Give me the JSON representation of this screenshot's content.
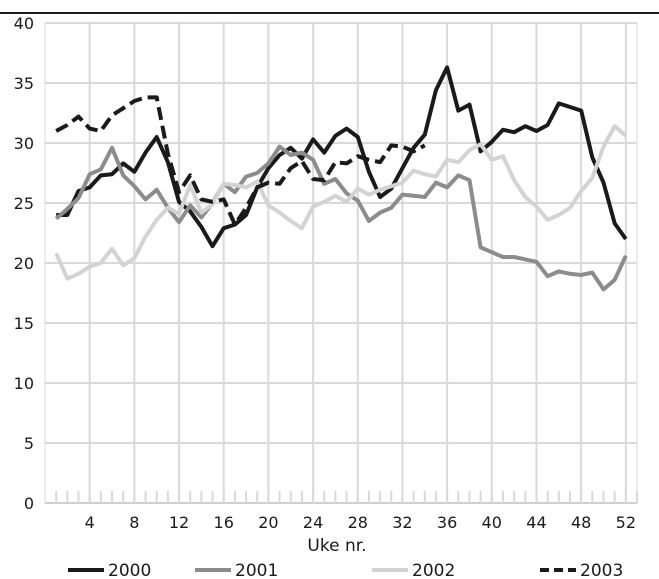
{
  "chart_data": {
    "type": "line",
    "title": "",
    "xlabel": "Uke nr.",
    "ylabel": "",
    "xlim": [
      0,
      53
    ],
    "ylim": [
      0,
      40
    ],
    "xticks": [
      4,
      8,
      12,
      16,
      20,
      24,
      28,
      32,
      36,
      40,
      44,
      48,
      52
    ],
    "yticks": [
      0,
      5,
      10,
      15,
      20,
      25,
      30,
      35,
      40
    ],
    "grid": true,
    "legend_position": "bottom",
    "series": [
      {
        "name": "2000",
        "color": "#1a1a1a",
        "dash": "solid",
        "x": [
          1,
          2,
          3,
          4,
          5,
          6,
          7,
          8,
          9,
          10,
          11,
          12,
          13,
          14,
          15,
          16,
          17,
          18,
          19,
          20,
          21,
          22,
          23,
          24,
          25,
          26,
          27,
          28,
          29,
          30,
          31,
          32,
          33,
          34,
          35,
          36,
          37,
          38,
          39,
          40,
          41,
          42,
          43,
          44,
          45,
          46,
          47,
          48,
          49,
          50,
          51,
          52
        ],
        "values": [
          24.0,
          24.0,
          26.0,
          26.3,
          27.3,
          27.4,
          28.3,
          27.6,
          29.2,
          30.5,
          28.4,
          25.1,
          24.3,
          23.0,
          21.4,
          22.9,
          23.2,
          24.0,
          26.3,
          27.9,
          29.0,
          29.6,
          28.7,
          30.3,
          29.2,
          30.6,
          31.2,
          30.5,
          27.6,
          25.5,
          26.2,
          27.9,
          29.6,
          30.7,
          34.4,
          36.3,
          32.7,
          33.2,
          29.3,
          30.1,
          31.1,
          30.9,
          31.4,
          31.0,
          31.5,
          33.3,
          33.0,
          32.7,
          28.8,
          26.7,
          23.3,
          22.0
        ]
      },
      {
        "name": "2001",
        "color": "#8c8c8c",
        "dash": "solid",
        "x": [
          1,
          2,
          3,
          4,
          5,
          6,
          7,
          8,
          9,
          10,
          11,
          12,
          13,
          14,
          15,
          16,
          17,
          18,
          19,
          20,
          21,
          22,
          23,
          24,
          25,
          26,
          27,
          28,
          29,
          30,
          31,
          32,
          33,
          34,
          35,
          36,
          37,
          38,
          39,
          40,
          41,
          42,
          43,
          44,
          45,
          46,
          47,
          48,
          49,
          50,
          51,
          52
        ],
        "values": [
          23.7,
          24.5,
          25.4,
          27.4,
          27.8,
          29.6,
          27.3,
          26.4,
          25.3,
          26.1,
          24.6,
          23.4,
          24.8,
          23.8,
          25.0,
          26.6,
          25.9,
          27.2,
          27.5,
          28.3,
          29.7,
          29.0,
          29.2,
          28.6,
          26.6,
          27.0,
          25.8,
          25.2,
          23.5,
          24.2,
          24.6,
          25.7,
          25.6,
          25.5,
          26.7,
          26.3,
          27.3,
          26.9,
          21.3,
          20.9,
          20.5,
          20.5,
          20.3,
          20.1,
          18.9,
          19.3,
          19.1,
          19.0,
          19.2,
          17.8,
          18.6,
          20.6
        ]
      },
      {
        "name": "2002",
        "color": "#d3d3d3",
        "dash": "solid",
        "x": [
          1,
          2,
          3,
          4,
          5,
          6,
          7,
          8,
          9,
          10,
          11,
          12,
          13,
          14,
          15,
          16,
          17,
          18,
          19,
          20,
          21,
          22,
          23,
          24,
          25,
          26,
          27,
          28,
          29,
          30,
          31,
          32,
          33,
          34,
          35,
          36,
          37,
          38,
          39,
          40,
          41,
          42,
          43,
          44,
          45,
          46,
          47,
          48,
          49,
          50,
          51,
          52
        ],
        "values": [
          20.8,
          18.7,
          19.1,
          19.7,
          20.0,
          21.2,
          19.8,
          20.4,
          22.2,
          23.6,
          24.6,
          24.1,
          26.5,
          24.2,
          24.9,
          26.6,
          26.5,
          26.3,
          26.8,
          24.8,
          24.2,
          23.5,
          22.9,
          24.7,
          25.1,
          25.6,
          25.1,
          26.2,
          25.7,
          26.1,
          26.4,
          26.7,
          27.7,
          27.4,
          27.2,
          28.6,
          28.4,
          29.4,
          29.9,
          28.6,
          28.9,
          26.9,
          25.5,
          24.7,
          23.6,
          24.0,
          24.6,
          26.0,
          27.1,
          29.7,
          31.4,
          30.6
        ]
      },
      {
        "name": "2003",
        "color": "#1a1a1a",
        "dash": "dashed",
        "x": [
          1,
          2,
          3,
          4,
          5,
          6,
          7,
          8,
          9,
          10,
          11,
          12,
          13,
          14,
          15,
          16,
          17,
          18,
          19,
          20,
          21,
          22,
          23,
          24,
          25,
          26,
          27,
          28,
          29,
          30,
          31,
          32,
          33,
          34
        ],
        "values": [
          31.0,
          31.5,
          32.2,
          31.2,
          31.0,
          32.3,
          32.9,
          33.5,
          33.8,
          33.8,
          29.1,
          25.9,
          27.3,
          25.3,
          25.1,
          25.3,
          23.2,
          24.6,
          26.3,
          26.7,
          26.6,
          27.9,
          28.5,
          27.0,
          26.9,
          28.4,
          28.3,
          28.9,
          28.6,
          28.4,
          29.8,
          29.7,
          29.3,
          29.8
        ]
      }
    ]
  }
}
